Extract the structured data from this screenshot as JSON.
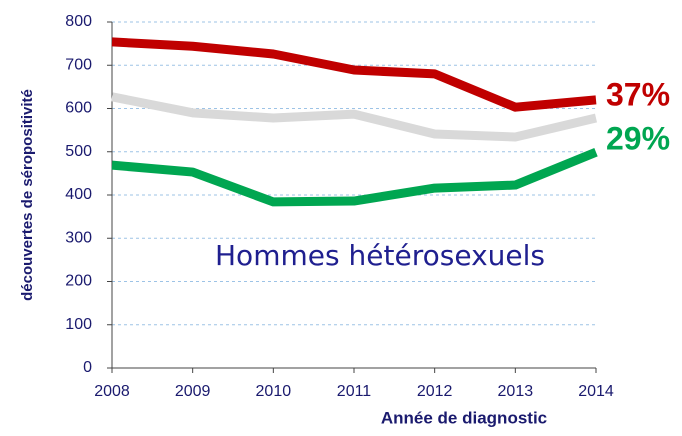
{
  "chart_data": {
    "type": "line",
    "x_label": "Année de diagnostic",
    "y_label": "découvertes de séropositivité",
    "x": [
      2008,
      2009,
      2010,
      2011,
      2012,
      2013,
      2014
    ],
    "series": [
      {
        "color": "#c00000",
        "values": [
          754,
          744,
          726,
          689,
          680,
          603,
          620
        ]
      },
      {
        "color": "#d9d9d9",
        "values": [
          627,
          590,
          578,
          587,
          541,
          534,
          578
        ]
      },
      {
        "color": "#00a651",
        "values": [
          469,
          453,
          384,
          386,
          416,
          423,
          499
        ]
      }
    ],
    "xlim": [
      2008,
      2014
    ],
    "xticks": [
      2008,
      2009,
      2010,
      2011,
      2012,
      2013,
      2014
    ],
    "ylim": [
      0,
      800
    ],
    "yticks": [
      0,
      100,
      200,
      300,
      400,
      500,
      600,
      700,
      800
    ],
    "grid": true,
    "annotations": [
      {
        "text": "37%",
        "color": "#c00000"
      },
      {
        "text": "29%",
        "color": "#00a651"
      },
      {
        "text": "Hommes hétérosexuels",
        "color": "#1f1f8f"
      }
    ]
  }
}
